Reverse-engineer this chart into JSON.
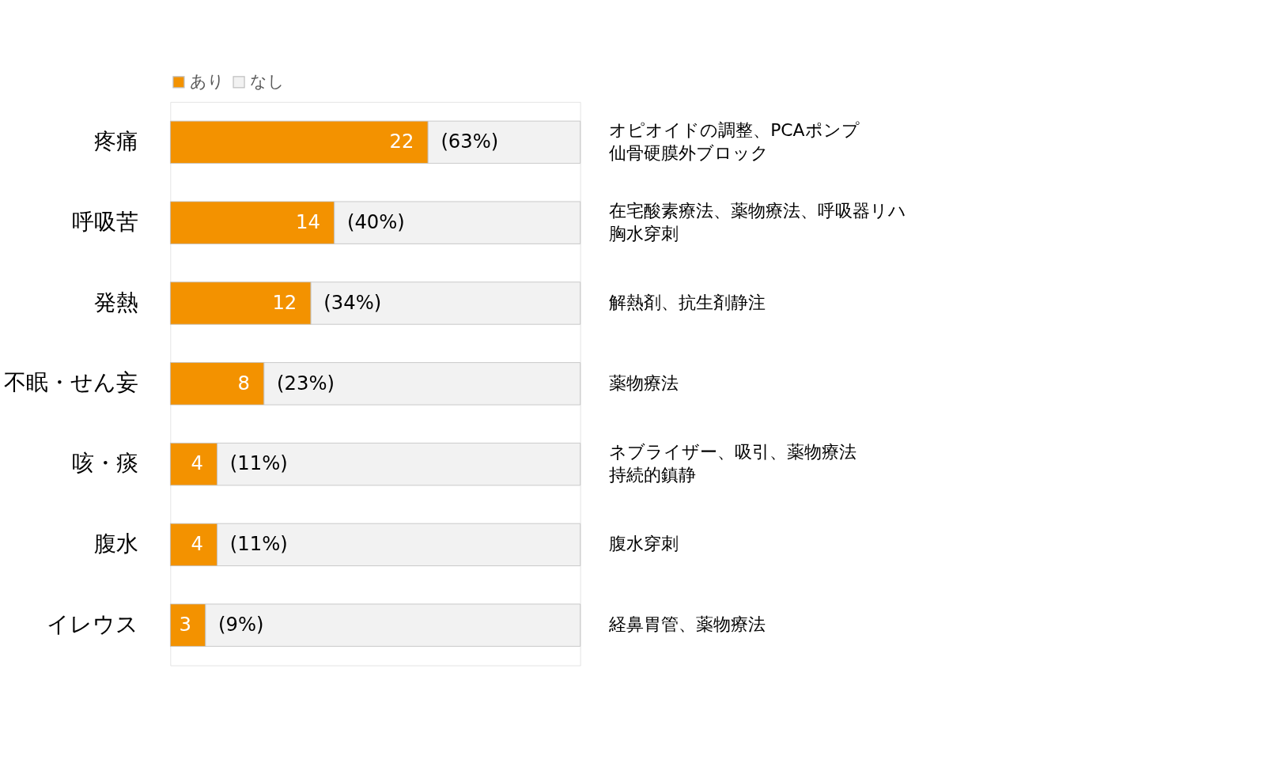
{
  "chart_data": {
    "type": "bar",
    "orientation": "horizontal",
    "stacked": true,
    "categories": [
      "疼痛",
      "呼吸苦",
      "発熱",
      "不眠・せん妄",
      "咳・痰",
      "腹水",
      "イレウス"
    ],
    "series": [
      {
        "name": "あり",
        "color": "#f39200",
        "values": [
          22,
          14,
          12,
          8,
          4,
          4,
          3
        ],
        "value_labels": [
          "22",
          "14",
          "12",
          "8",
          "4",
          "4",
          "3"
        ]
      },
      {
        "name": "なし",
        "color": "#f2f2f2",
        "values": [
          13,
          21,
          23,
          27,
          31,
          31,
          32
        ]
      }
    ],
    "annotations": [
      "(63%)",
      "オピオイドの調整、PCAポンプ",
      "仙骨硬膜外ブロック",
      "(40%)",
      "在宅酸素療法、薬物療法、呼吸器リハ",
      "胸水穿刺",
      "(34%)",
      "解熱剤、抗生剤静注",
      "(23%)",
      "薬物療法",
      "(11%)",
      "ネブライザー、吸引、薬物療法",
      "持続的鎮静",
      "(11%)",
      "腹水穿刺",
      "(9%)",
      "経鼻胃管、薬物療法"
    ],
    "tick_labels": "y",
    "legend": "top",
    "grid": false
  }
}
